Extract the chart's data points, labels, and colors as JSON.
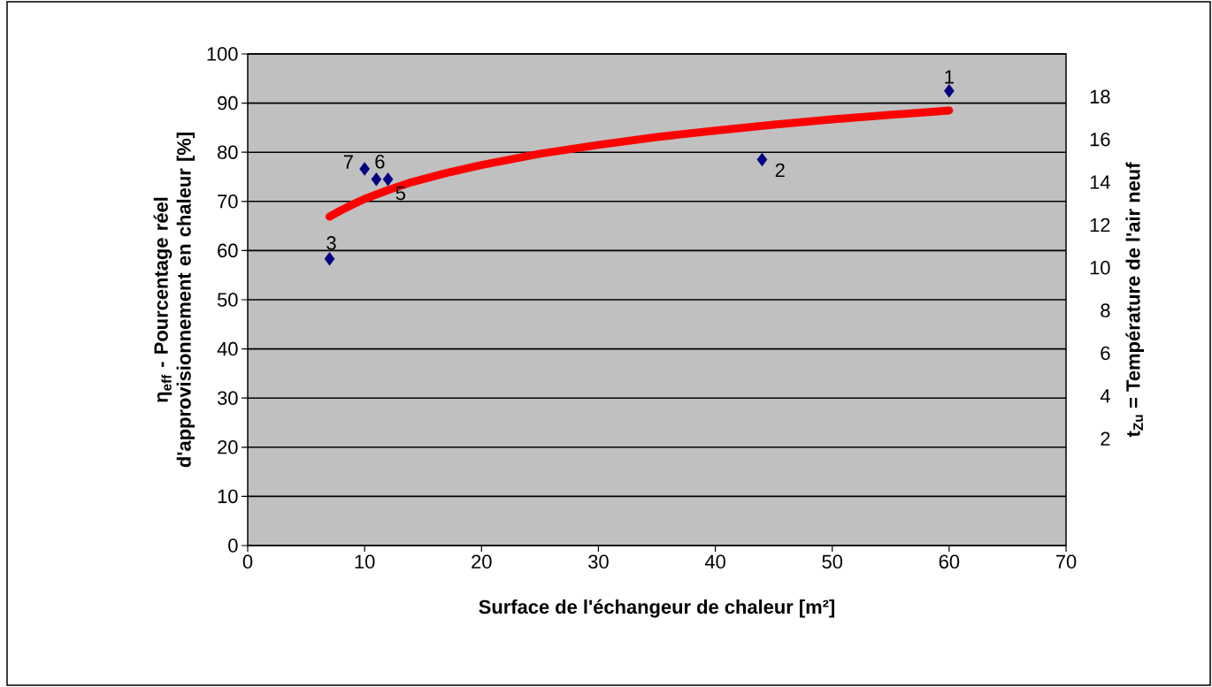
{
  "chart_data": {
    "type": "scatter",
    "xlabel": "Surface de l'échangeur de chaleur [m²]",
    "ylabel": "η$_{eff}$ - Pourcentage réel d'approvisionnement en chaleur [%]",
    "y2label": "t$_{Zu}$ = Température de l'air neuf",
    "xlim": [
      0,
      70
    ],
    "xticks": [
      0,
      10,
      20,
      30,
      40,
      50,
      60,
      70
    ],
    "ylim": [
      0,
      100
    ],
    "yticks": [
      0,
      10,
      20,
      30,
      40,
      50,
      60,
      70,
      80,
      90,
      100
    ],
    "y2lim": [
      -3,
      20
    ],
    "y2ticks": [
      2,
      4,
      6,
      8,
      10,
      12,
      14,
      16,
      18
    ],
    "grid": "y",
    "series": [
      {
        "marker": "diamond",
        "color": "#000080",
        "x": [
          60,
          44,
          7,
          12,
          11,
          10
        ],
        "values": [
          92.5,
          78.5,
          58.3,
          74.5,
          74.5,
          76.6
        ]
      },
      {
        "type": "line",
        "marker": "none",
        "color": "#ff0000",
        "x": [
          7,
          8,
          9,
          10,
          12,
          14,
          17,
          20,
          25,
          30,
          35,
          40,
          45,
          50,
          55,
          60
        ],
        "values": [
          66.9,
          68.2,
          69.4,
          70.5,
          72.3,
          73.9,
          75.8,
          77.4,
          79.7,
          81.5,
          83.1,
          84.4,
          85.6,
          86.7,
          87.6,
          88.5
        ]
      }
    ],
    "annotations": [
      {
        "text": "1",
        "x": 60,
        "y": 92.5
      },
      {
        "text": "2",
        "x": 44,
        "y": 78.5
      },
      {
        "text": "3",
        "x": 7,
        "y": 58.3
      },
      {
        "text": "5",
        "x": 12,
        "y": 74.5
      },
      {
        "text": "6",
        "x": 11,
        "y": 74.5
      },
      {
        "text": "7",
        "x": 10,
        "y": 76.6
      }
    ]
  }
}
